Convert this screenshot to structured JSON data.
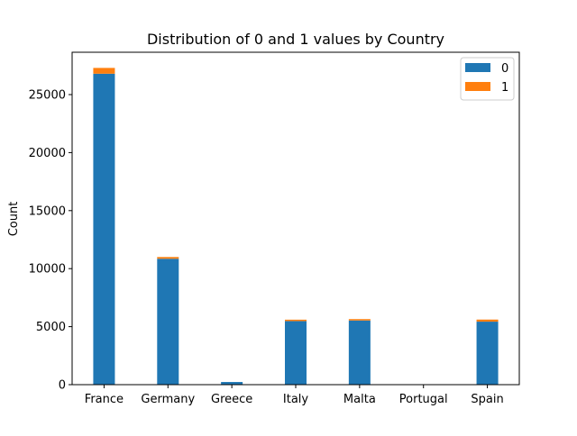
{
  "chart_data": {
    "type": "bar",
    "stacked": true,
    "title": "Distribution of 0 and 1 values by Country",
    "xlabel": "",
    "ylabel": "Count",
    "categories": [
      "France",
      "Germany",
      "Greece",
      "Italy",
      "Malta",
      "Portugal",
      "Spain"
    ],
    "series": [
      {
        "name": "0",
        "color": "#1f77b4",
        "values": [
          26800,
          10850,
          230,
          5480,
          5530,
          0,
          5430
        ]
      },
      {
        "name": "1",
        "color": "#ff7f0e",
        "values": [
          500,
          150,
          0,
          120,
          120,
          0,
          180
        ]
      }
    ],
    "ylim": [
      0,
      28650
    ],
    "yticks": [
      0,
      5000,
      10000,
      15000,
      20000,
      25000
    ],
    "grid": false,
    "legend_position": "top-right"
  }
}
